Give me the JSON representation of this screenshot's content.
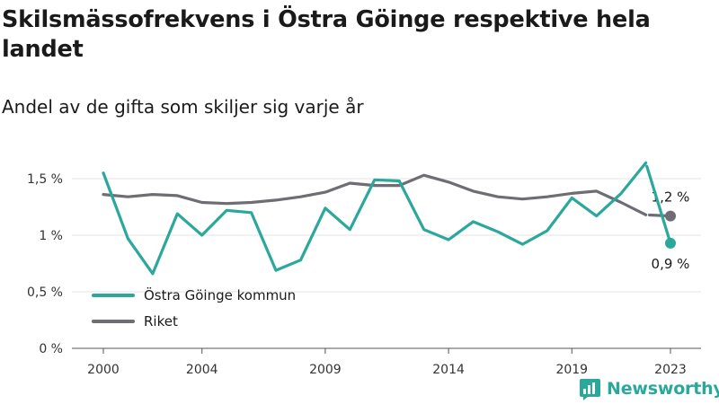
{
  "header": {
    "title": "Skilsmässofrekvens i Östra Göinge respektive hela landet",
    "subtitle": "Andel av de gifta som skiljer sig varje år"
  },
  "brand": {
    "name": "Newsworthy",
    "icon": "bar-chart-logo-icon",
    "color": "#2ba89c"
  },
  "chart_data": {
    "type": "line",
    "x": [
      2000,
      2001,
      2002,
      2003,
      2004,
      2005,
      2006,
      2007,
      2008,
      2009,
      2010,
      2011,
      2012,
      2013,
      2014,
      2015,
      2016,
      2017,
      2018,
      2019,
      2020,
      2021,
      2022,
      2023
    ],
    "xticks": [
      2000,
      2004,
      2009,
      2014,
      2019,
      2023
    ],
    "xtick_labels": [
      "2000",
      "2004",
      "2009",
      "2014",
      "2019",
      "2023"
    ],
    "xlim": [
      1998.5,
      2024.5
    ],
    "ylim": [
      0,
      1.6
    ],
    "yticks": [
      0,
      0.5,
      1,
      1.5
    ],
    "ytick_labels": [
      "0 %",
      "0,5 %",
      "1 %",
      "1,5 %"
    ],
    "grid": true,
    "legend_position": "bottom-left",
    "series": [
      {
        "name": "Östra Göinge kommun",
        "color": "#2ba89c",
        "values": [
          1.55,
          0.97,
          0.66,
          1.19,
          1.0,
          1.22,
          1.2,
          0.69,
          0.78,
          1.24,
          1.05,
          1.49,
          1.48,
          1.05,
          0.96,
          1.12,
          1.03,
          0.92,
          1.04,
          1.33,
          1.17,
          1.37,
          1.64,
          0.93
        ],
        "end_label": "0,9 %"
      },
      {
        "name": "Riket",
        "color": "#6e6d73",
        "values": [
          1.36,
          1.34,
          1.36,
          1.35,
          1.29,
          1.28,
          1.29,
          1.31,
          1.34,
          1.38,
          1.46,
          1.44,
          1.44,
          1.53,
          1.47,
          1.39,
          1.34,
          1.32,
          1.34,
          1.37,
          1.39,
          1.29,
          1.18,
          1.17
        ],
        "end_label": "1,2 %"
      }
    ]
  }
}
